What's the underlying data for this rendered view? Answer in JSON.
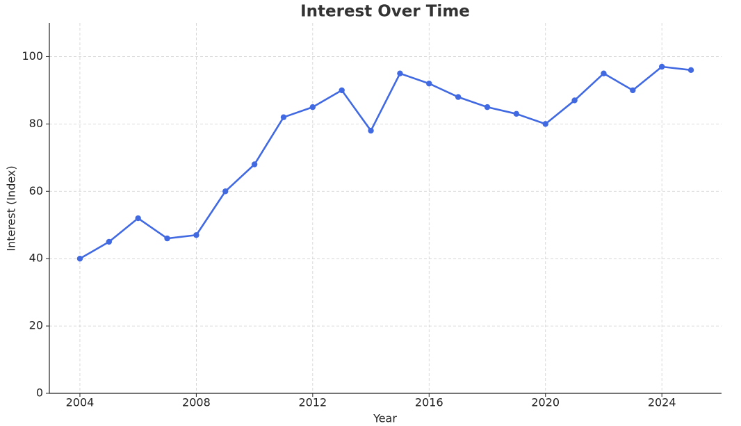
{
  "chart_data": {
    "type": "line",
    "title": "Interest Over Time",
    "x_label": "Year",
    "y_label": "Interest (Index)",
    "x": [
      2004,
      2005,
      2006,
      2007,
      2008,
      2009,
      2010,
      2011,
      2012,
      2013,
      2014,
      2015,
      2016,
      2017,
      2018,
      2019,
      2020,
      2021,
      2022,
      2023,
      2024,
      2025
    ],
    "series": [
      {
        "name": "Interest",
        "color": "#4169e1",
        "values": [
          40,
          45,
          52,
          46,
          47,
          60,
          68,
          82,
          85,
          90,
          78,
          95,
          92,
          88,
          85,
          83,
          80,
          87,
          95,
          90,
          97,
          96
        ]
      }
    ],
    "xlim": [
      2002.95,
      2026.05
    ],
    "xticks": [
      2004,
      2008,
      2012,
      2016,
      2020,
      2024
    ],
    "ylim": [
      0,
      110
    ],
    "yticks": [
      0,
      20,
      40,
      60,
      80,
      100
    ],
    "grid": true
  }
}
